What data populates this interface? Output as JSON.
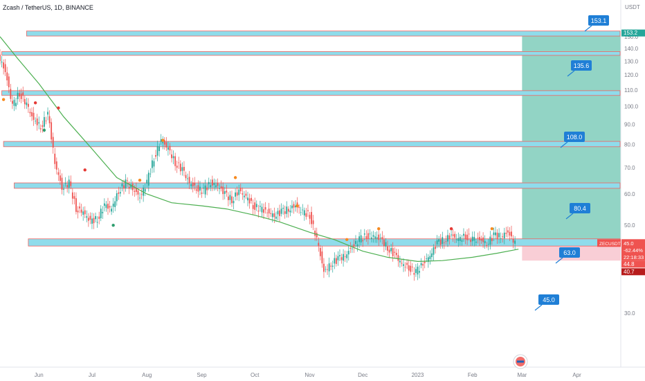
{
  "header": {
    "symbol_title": "Zcash / TetherUS, 1D, BINANCE"
  },
  "colors": {
    "zone_fill": "#8fdceb",
    "zone_border": "#f0625f",
    "projection_fill": "#7fcdbb",
    "projection_loss": "#f8c9d2",
    "label_blue": "#1f7fd6",
    "ma_line": "#4caf50",
    "up_candle": "#26a69a",
    "down_candle": "#ef5350",
    "marker_orange": "#f68a1f",
    "marker_red": "#e53935",
    "marker_green": "#2e9e6e",
    "price_label_red": "#ef5350",
    "price_label_dark_red": "#b71c1c",
    "target_label_green": "#26a69a"
  },
  "price_axis": {
    "currency": "USDT",
    "ticks": [
      "150.0",
      "140.0",
      "130.0",
      "120.0",
      "110.0",
      "100.0",
      "90.0",
      "80.0",
      "70.0",
      "60.0",
      "50.0",
      "30.0"
    ],
    "labels": {
      "target": "153.2",
      "symbol": "ZECUSDT",
      "last_price": "45.0",
      "change_pct": "-62.44%",
      "countdown": "22:18:33",
      "level_a": "44.8",
      "level_b": "40.7"
    }
  },
  "time_axis": {
    "labels": [
      "Jun",
      "Jul",
      "Aug",
      "Sep",
      "Oct",
      "Nov",
      "Dec",
      "2023",
      "Feb",
      "Mar",
      "Apr"
    ]
  },
  "zone_labels": [
    "153.1",
    "135.6",
    "108.0",
    "80.4",
    "63.0",
    "45.0"
  ],
  "chart_data": {
    "type": "candlestick",
    "title": "Zcash / TetherUS, 1D, BINANCE",
    "x_range": [
      "2022-05-10",
      "2023-04-25"
    ],
    "y_unit": "USDT",
    "ylim": [
      25,
      158
    ],
    "y_scale": "log",
    "resistance_zones": [
      {
        "label": 153.1,
        "low": 150.5,
        "high": 155.0
      },
      {
        "label": 135.6,
        "low": 134.5,
        "high": 137.5
      },
      {
        "label": 108.0,
        "low": 106.5,
        "high": 109.5
      },
      {
        "label": 80.4,
        "low": 79.0,
        "high": 81.5
      },
      {
        "label": 63.0,
        "low": 62.0,
        "high": 64.0
      },
      {
        "label": 45.0,
        "low": 44.3,
        "high": 46.2
      }
    ],
    "projection": {
      "from": "2023-03-01",
      "to": "2023-04-30",
      "entry": 45.0,
      "target": 153.2,
      "stop": 40.7
    },
    "close_series": {
      "x": [
        "2022-05-10",
        "2022-05-14",
        "2022-05-18",
        "2022-05-22",
        "2022-05-26",
        "2022-05-30",
        "2022-06-03",
        "2022-06-07",
        "2022-06-11",
        "2022-06-15",
        "2022-06-19",
        "2022-06-23",
        "2022-06-27",
        "2022-07-01",
        "2022-07-05",
        "2022-07-09",
        "2022-07-13",
        "2022-07-17",
        "2022-07-21",
        "2022-07-25",
        "2022-07-29",
        "2022-08-02",
        "2022-08-06",
        "2022-08-10",
        "2022-08-14",
        "2022-08-18",
        "2022-08-22",
        "2022-08-26",
        "2022-08-30",
        "2022-09-03",
        "2022-09-07",
        "2022-09-11",
        "2022-09-15",
        "2022-09-19",
        "2022-09-23",
        "2022-09-27",
        "2022-10-01",
        "2022-10-05",
        "2022-10-09",
        "2022-10-13",
        "2022-10-17",
        "2022-10-21",
        "2022-10-25",
        "2022-10-29",
        "2022-11-02",
        "2022-11-06",
        "2022-11-10",
        "2022-11-14",
        "2022-11-18",
        "2022-11-22",
        "2022-11-26",
        "2022-11-30",
        "2022-12-04",
        "2022-12-08",
        "2022-12-12",
        "2022-12-16",
        "2022-12-20",
        "2022-12-24",
        "2022-12-28",
        "2023-01-01",
        "2023-01-05",
        "2023-01-09",
        "2023-01-13",
        "2023-01-17",
        "2023-01-21",
        "2023-01-25",
        "2023-01-29",
        "2023-02-02",
        "2023-02-06",
        "2023-02-10",
        "2023-02-14",
        "2023-02-18",
        "2023-02-22",
        "2023-02-26"
      ],
      "y": [
        135,
        122,
        100,
        108,
        101,
        92,
        89,
        95,
        72,
        62,
        64,
        55,
        54,
        51,
        52,
        56,
        55,
        61,
        64,
        62,
        59,
        64,
        74,
        82,
        78,
        72,
        69,
        64,
        62,
        61,
        64,
        63,
        60,
        58,
        61,
        59,
        56,
        55,
        54,
        53,
        54,
        55,
        56,
        54,
        53,
        46,
        38,
        40,
        41,
        42,
        44,
        46,
        47,
        47,
        46,
        44,
        42,
        40,
        39,
        38,
        40,
        42,
        45,
        46,
        47,
        46,
        47,
        46,
        46,
        45,
        47,
        47,
        48,
        45
      ]
    },
    "moving_average": {
      "x": [
        "2022-05-10",
        "2022-05-20",
        "2022-06-01",
        "2022-06-15",
        "2022-07-01",
        "2022-07-15",
        "2022-08-01",
        "2022-08-15",
        "2022-09-01",
        "2022-09-15",
        "2022-10-01",
        "2022-10-15",
        "2022-11-01",
        "2022-11-15",
        "2022-12-01",
        "2022-12-15",
        "2023-01-01",
        "2023-01-15",
        "2023-02-01",
        "2023-02-15",
        "2023-02-27"
      ],
      "y": [
        150,
        132,
        114,
        94,
        78,
        66,
        60,
        57,
        56,
        55,
        53,
        51,
        48,
        46,
        43,
        41.5,
        40.5,
        40.7,
        41.5,
        42.5,
        43.5
      ]
    },
    "signal_markers": [
      {
        "x": "2022-05-12",
        "y": 104,
        "color": "orange"
      },
      {
        "x": "2022-05-30",
        "y": 102,
        "color": "red"
      },
      {
        "x": "2022-06-04",
        "y": 87,
        "color": "green"
      },
      {
        "x": "2022-06-12",
        "y": 99,
        "color": "red"
      },
      {
        "x": "2022-06-27",
        "y": 69,
        "color": "red"
      },
      {
        "x": "2022-07-13",
        "y": 50,
        "color": "green"
      },
      {
        "x": "2022-07-28",
        "y": 65,
        "color": "orange"
      },
      {
        "x": "2022-08-10",
        "y": 82,
        "color": "orange"
      },
      {
        "x": "2022-09-20",
        "y": 66,
        "color": "orange"
      },
      {
        "x": "2022-10-25",
        "y": 56,
        "color": "orange"
      },
      {
        "x": "2022-11-22",
        "y": 46,
        "color": "orange"
      },
      {
        "x": "2022-12-10",
        "y": 49,
        "color": "orange"
      },
      {
        "x": "2023-01-20",
        "y": 49,
        "color": "red"
      },
      {
        "x": "2023-02-12",
        "y": 49,
        "color": "orange"
      }
    ]
  }
}
